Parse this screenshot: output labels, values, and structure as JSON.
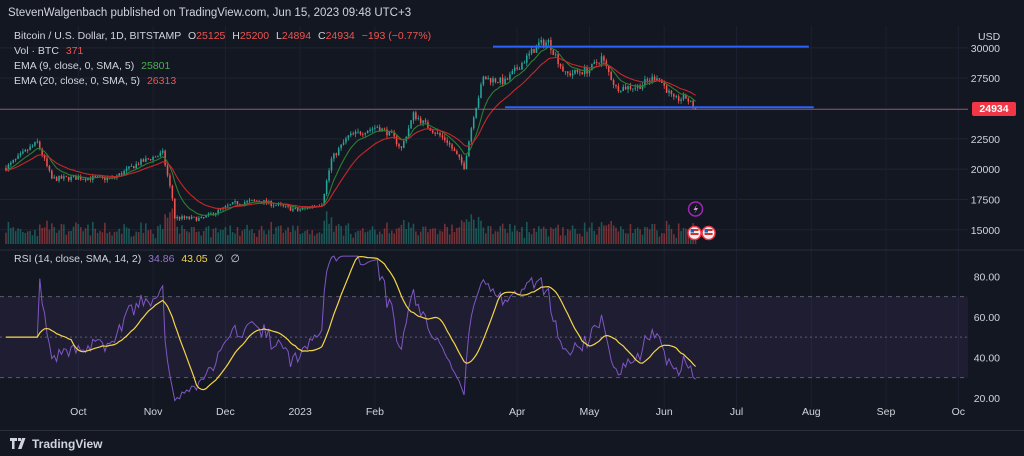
{
  "header": {
    "author": "StevenWalgenbach",
    "published_text": "published on TradingView.com, Jun 15, 2023 09:48 UTC+3"
  },
  "legend": {
    "symbol": "Bitcoin / U.S. Dollar, 1D, BITSTAMP",
    "open_label": "O",
    "open": "25125",
    "high_label": "H",
    "high": "25200",
    "low_label": "L",
    "low": "24894",
    "close_label": "C",
    "close": "24934",
    "change": "−193 (−0.77%)",
    "vol_label": "Vol · BTC",
    "vol": "371",
    "ema9_label": "EMA (9, close, 0, SMA, 5)",
    "ema9": "25801",
    "ema20_label": "EMA (20, close, 0, SMA, 5)",
    "ema20": "26313",
    "rsi_label": "RSI (14, close, SMA, 14, 2)",
    "rsi": "34.86",
    "rsi_ma": "43.05",
    "rsi_extra1": "∅",
    "rsi_extra2": "∅"
  },
  "price_axis": {
    "currency": "USD",
    "last_price": "24934"
  },
  "footer": {
    "brand": "TradingView"
  },
  "colors": {
    "bg": "#131722",
    "up": "#26a69a",
    "down": "#ef5350",
    "ema9": "#2e7d32",
    "ema20": "#c62828",
    "channel": "#2962ff",
    "rsi": "#7e57c2",
    "rsi_ma": "#f5d547",
    "price_tag": "#f23645"
  },
  "chart_data": [
    {
      "type": "candlestick",
      "title": "Bitcoin / U.S. Dollar, 1D, BITSTAMP",
      "ylabel": "USD",
      "yticks": [
        15000,
        17500,
        20000,
        22500,
        25000,
        27500,
        30000
      ],
      "ylim": [
        13500,
        31800
      ],
      "x_month_labels": [
        "Oct",
        "Nov",
        "Dec",
        "2023",
        "Feb",
        "Apr",
        "May",
        "Jun",
        "Jul",
        "Aug",
        "Sep",
        "Oc"
      ],
      "x_month_anchor_values": [
        "2022-10-01",
        "2022-11-01",
        "2022-12-01",
        "2023-01-01",
        "2023-02-01",
        "2023-04-01",
        "2023-05-01",
        "2023-06-01",
        "2023-07-01",
        "2023-08-01",
        "2023-09-01",
        "2023-10-01"
      ],
      "x_start": "2022-09-01",
      "x_end": "2023-10-05",
      "close_anchors": [
        [
          "2022-09-01",
          20100
        ],
        [
          "2022-09-10",
          21600
        ],
        [
          "2022-09-14",
          22200
        ],
        [
          "2022-09-20",
          19200
        ],
        [
          "2022-10-01",
          19300
        ],
        [
          "2022-10-15",
          19200
        ],
        [
          "2022-10-26",
          20500
        ],
        [
          "2022-11-05",
          21300
        ],
        [
          "2022-11-09",
          17600
        ],
        [
          "2022-11-10",
          16000
        ],
        [
          "2022-11-21",
          15900
        ],
        [
          "2022-12-05",
          17200
        ],
        [
          "2022-12-15",
          17400
        ],
        [
          "2022-12-31",
          16600
        ],
        [
          "2023-01-10",
          17200
        ],
        [
          "2023-01-14",
          20800
        ],
        [
          "2023-01-21",
          22700
        ],
        [
          "2023-02-02",
          23500
        ],
        [
          "2023-02-08",
          22800
        ],
        [
          "2023-02-12",
          21700
        ],
        [
          "2023-02-17",
          24500
        ],
        [
          "2023-02-25",
          23200
        ],
        [
          "2023-03-03",
          22300
        ],
        [
          "2023-03-10",
          20200
        ],
        [
          "2023-03-14",
          24500
        ],
        [
          "2023-03-18",
          27500
        ],
        [
          "2023-03-27",
          27200
        ],
        [
          "2023-04-10",
          30300
        ],
        [
          "2023-04-14",
          30500
        ],
        [
          "2023-04-21",
          27800
        ],
        [
          "2023-05-01",
          28200
        ],
        [
          "2023-05-06",
          29200
        ],
        [
          "2023-05-12",
          26700
        ],
        [
          "2023-05-21",
          26800
        ],
        [
          "2023-05-29",
          27700
        ],
        [
          "2023-06-05",
          25700
        ],
        [
          "2023-06-10",
          25900
        ],
        [
          "2023-06-14",
          24934
        ]
      ],
      "series": [
        {
          "name": "EMA (9, close, 0, SMA, 5)",
          "last": 25801
        },
        {
          "name": "EMA (20, close, 0, SMA, 5)",
          "last": 26313
        }
      ],
      "horizontal_lines": [
        {
          "value": 30100,
          "from": "2023-03-22",
          "to": "2023-07-31"
        },
        {
          "value": 25100,
          "from": "2023-03-27",
          "to": "2023-08-02"
        }
      ],
      "last_price_line": 24934
    },
    {
      "type": "bar",
      "title": "Vol · BTC",
      "last": 371
    },
    {
      "type": "line",
      "title": "RSI (14, close, SMA, 14, 2)",
      "yticks": [
        20,
        40,
        60,
        80
      ],
      "ytick_labels": [
        "20.00",
        "40.00",
        "60.00",
        "80.00"
      ],
      "ylim": [
        15,
        92
      ],
      "band": [
        30,
        70
      ],
      "mid": 50,
      "series": [
        {
          "name": "RSI",
          "last": 34.86
        },
        {
          "name": "RSI SMA",
          "last": 43.05
        }
      ]
    }
  ]
}
